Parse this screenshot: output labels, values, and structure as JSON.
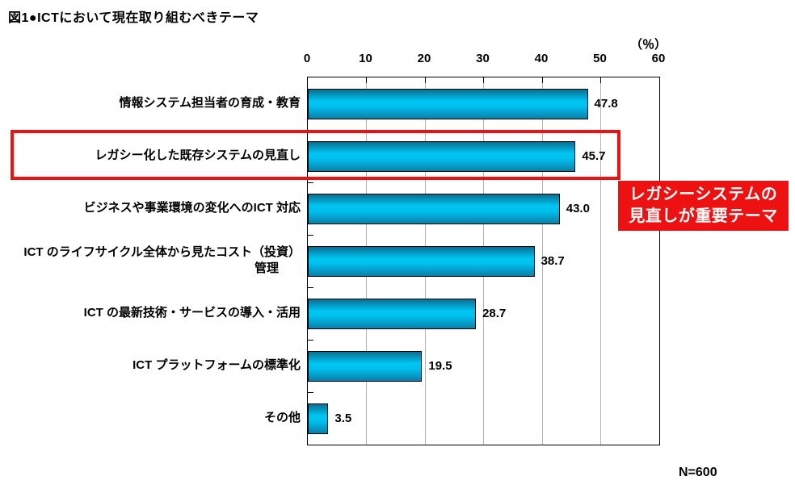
{
  "title": "図1●ICTにおいて現在取り組むべきテーマ",
  "chart_data": {
    "type": "bar",
    "orientation": "horizontal",
    "title": "図1●ICTにおいて現在取り組むべきテーマ",
    "categories": [
      "情報システム担当者の育成・教育",
      "レガシー化した既存システムの見直し",
      "ビジネスや事業環境の変化へのICT 対応",
      "ICT のライフサイクル全体から見たコスト（投資）\n管理",
      "ICT の最新技術・サービスの導入・活用",
      "ICT プラットフォームの標準化",
      "その他"
    ],
    "values": [
      47.8,
      45.7,
      43.0,
      38.7,
      28.7,
      19.5,
      3.5
    ],
    "value_labels": [
      "47.8",
      "45.7",
      "43.0",
      "38.7",
      "28.7",
      "19.5",
      "3.5"
    ],
    "xlabel": "（％）",
    "xlim": [
      0,
      60
    ],
    "x_ticks": [
      0,
      10,
      20,
      30,
      40,
      50,
      60
    ],
    "grid": true,
    "legend": "none",
    "highlight_index": 1,
    "annotation": {
      "line1": "レガシーシステムの",
      "line2": "見直しが重要テーマ"
    },
    "footnote": "N=600",
    "colors": {
      "bar_mid": "#00c5f3",
      "bar_edge_shade": "#0b6f92",
      "bar_border": "#000000",
      "gridline": "#b3b3b3",
      "highlight_red": "#ee1111",
      "text": "#000000",
      "background": "#ffffff"
    }
  }
}
